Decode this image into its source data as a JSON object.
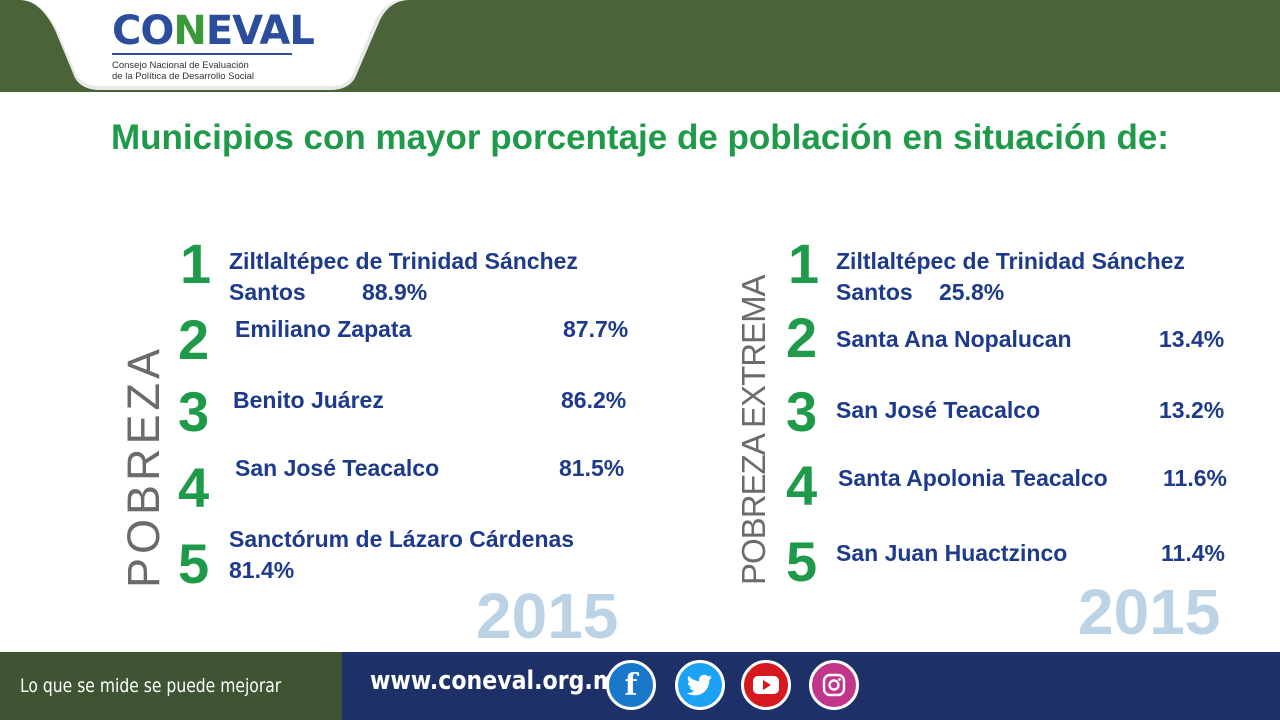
{
  "header": {
    "logo_text": "CONEVAL",
    "logo_sub1": "Consejo Nacional de Evaluación",
    "logo_sub2": "de la Política de Desarrollo Social"
  },
  "title": "Municipios con mayor porcentaje de población en situación de:",
  "pobreza": {
    "label": "POBREZA",
    "year": "2015",
    "items": [
      {
        "rank": "1",
        "name_line1": "Ziltlaltépec de Trinidad Sánchez",
        "name_line2": "Santos",
        "pct": "88.9%"
      },
      {
        "rank": "2",
        "name": "Emiliano Zapata",
        "pct": "87.7%"
      },
      {
        "rank": "3",
        "name": "Benito Juárez",
        "pct": "86.2%"
      },
      {
        "rank": "4",
        "name": "San José Teacalco",
        "pct": "81.5%"
      },
      {
        "rank": "5",
        "name": "Sanctórum de Lázaro Cárdenas",
        "pct": "81.4%"
      }
    ]
  },
  "pobreza_extrema": {
    "label": "POBREZA EXTREMA",
    "year": "2015",
    "items": [
      {
        "rank": "1",
        "name_line1": "Ziltlaltépec de Trinidad Sánchez",
        "name_line2": "Santos",
        "pct": "25.8%"
      },
      {
        "rank": "2",
        "name": "Santa Ana Nopalucan",
        "pct": "13.4%"
      },
      {
        "rank": "3",
        "name": "San José Teacalco",
        "pct": "13.2%"
      },
      {
        "rank": "4",
        "name": "Santa Apolonia Teacalco",
        "pct": "11.6%"
      },
      {
        "rank": "5",
        "name": "San Juan Huactzinco",
        "pct": "11.4%"
      }
    ]
  },
  "footer": {
    "slogan": "Lo que se mide se puede mejorar",
    "url": "www.coneval.org.mx",
    "social": [
      "facebook-icon",
      "twitter-icon",
      "youtube-icon",
      "instagram-icon"
    ],
    "colors": {
      "facebook": "#1877c9",
      "twitter": "#1da1f2",
      "youtube": "#d6181f",
      "instagram": "#c1358a"
    }
  },
  "colors": {
    "header": "#4a6339",
    "title": "#1f9a4a",
    "text": "#1e3a8a",
    "year": "#bcd3e6",
    "footer": "#1d3067"
  }
}
